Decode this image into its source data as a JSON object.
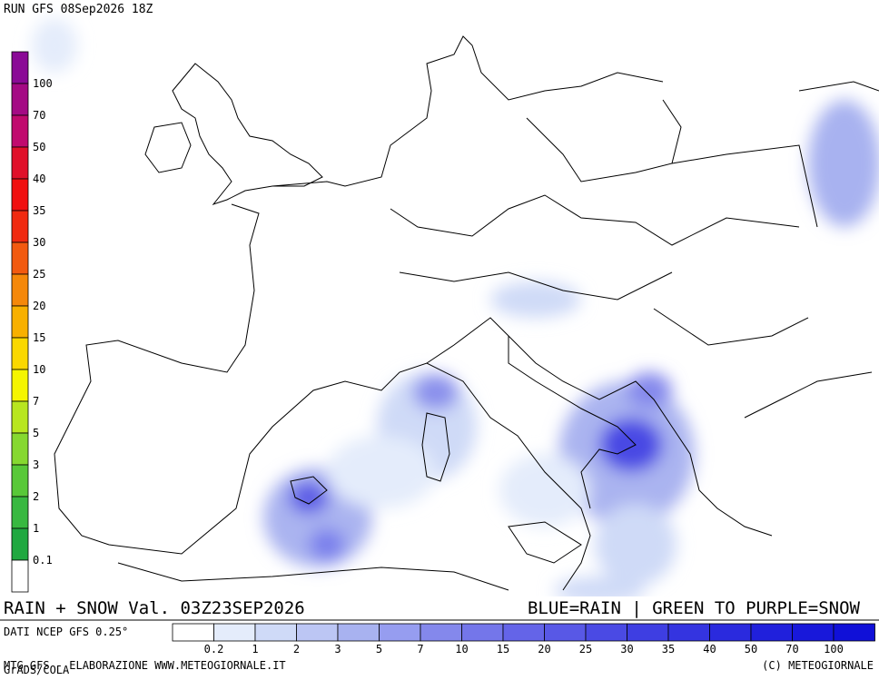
{
  "header": {
    "run": "RUN GFS 08Sep2026 18Z"
  },
  "snow_scale": {
    "labels": [
      "100",
      "70",
      "50",
      "40",
      "35",
      "30",
      "25",
      "20",
      "15",
      "10",
      "7",
      "5",
      "3",
      "2",
      "1",
      "0.1"
    ],
    "colors": [
      "#8a0a96",
      "#a40a84",
      "#c00a6e",
      "#e0102a",
      "#f01010",
      "#f02a10",
      "#f25a10",
      "#f5880a",
      "#f8b000",
      "#fad800",
      "#f5f500",
      "#b8e620",
      "#86d830",
      "#58c838",
      "#38b840",
      "#20a840",
      "#ffffff"
    ]
  },
  "caption": {
    "left": "RAIN + SNOW Val. 03Z23SEP2026",
    "right": "BLUE=RAIN | GREEN TO PURPLE=SNOW"
  },
  "rain_scale": {
    "source": "DATI NCEP GFS 0.25°",
    "labels": [
      "0.2",
      "1",
      "2",
      "3",
      "5",
      "7",
      "10",
      "15",
      "20",
      "25",
      "30",
      "35",
      "40",
      "50",
      "70",
      "100"
    ],
    "colors": [
      "#ffffff",
      "#e4ecfb",
      "#cfdaf7",
      "#bcc6f4",
      "#a8b2f0",
      "#969df0",
      "#8488ec",
      "#7476ea",
      "#6464e8",
      "#5858e6",
      "#4a4ae4",
      "#3e3ee2",
      "#3434e0",
      "#2a2ade",
      "#2020dc",
      "#1818da",
      "#1010d8"
    ]
  },
  "footer": {
    "left": "MTG-GFS - ELABORAZIONE WWW.METEOGIORNALE.IT",
    "right": "(C) METEOGIORNALE",
    "credit": "GrADS/COLA"
  }
}
